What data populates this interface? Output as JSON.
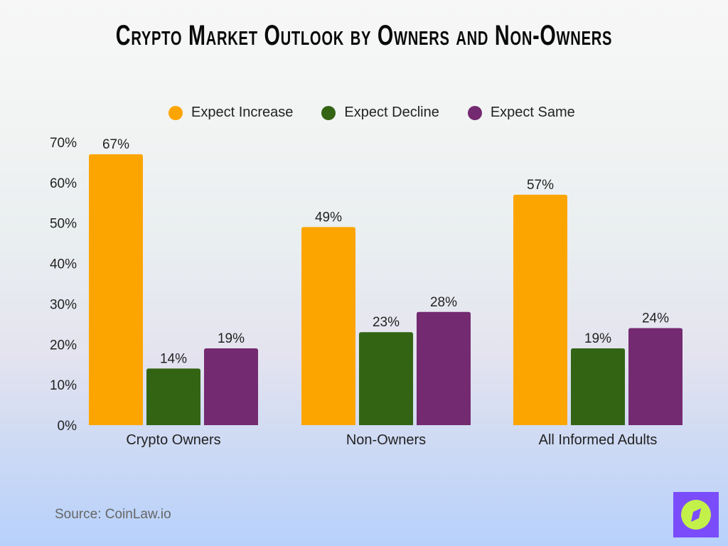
{
  "chart_data": {
    "type": "bar",
    "title": "Crypto Market Outlook by Owners and Non-Owners",
    "categories": [
      "Crypto Owners",
      "Non-Owners",
      "All Informed Adults"
    ],
    "series": [
      {
        "name": "Expect Increase",
        "color": "#fca500",
        "values": [
          67,
          49,
          57
        ]
      },
      {
        "name": "Expect Decline",
        "color": "#336414",
        "values": [
          14,
          23,
          19
        ]
      },
      {
        "name": "Expect Same",
        "color": "#732a70",
        "values": [
          19,
          28,
          24
        ]
      }
    ],
    "ylim": [
      0,
      70
    ],
    "yticks": [
      "0%",
      "10%",
      "20%",
      "30%",
      "40%",
      "50%",
      "60%",
      "70%"
    ],
    "value_suffix": "%",
    "grid": false,
    "legend_position": "top"
  },
  "source": "Source: CoinLaw.io",
  "logo_icon": "compass-icon"
}
